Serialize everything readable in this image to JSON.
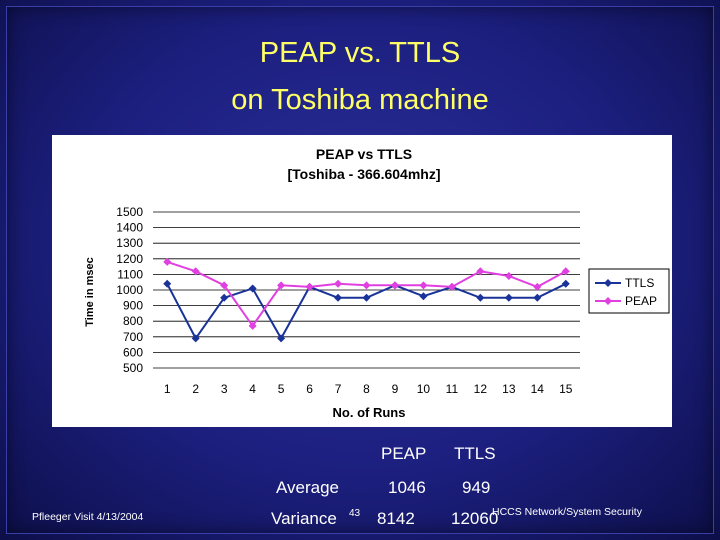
{
  "slide": {
    "title_line1": "PEAP vs. TTLS",
    "title_line2": "on Toshiba machine",
    "footer_left": "Pfleeger Visit 4/13/2004",
    "footer_right": "HCCS Network/System Security",
    "page_number": "43"
  },
  "stats": {
    "col_peap": "PEAP",
    "col_ttls": "TTLS",
    "average_label": "Average",
    "average_peap": "1046",
    "average_ttls": "949",
    "variance_label": "Variance",
    "variance_peap": "8142",
    "variance_ttls": "12060"
  },
  "chart_data": {
    "type": "line",
    "title_line1": "PEAP vs TTLS",
    "title_line2": "[Toshiba - 366.604mhz]",
    "xlabel": "No. of Runs",
    "ylabel": "Time in msec",
    "x": [
      "1",
      "2",
      "3",
      "4",
      "5",
      "6",
      "7",
      "8",
      "9",
      "10",
      "11",
      "12",
      "13",
      "14",
      "15"
    ],
    "ylim": [
      500,
      1500
    ],
    "yticks": [
      "1500",
      "1400",
      "1300",
      "1200",
      "1100",
      "1000",
      "900",
      "800",
      "700",
      "600",
      "500"
    ],
    "grid": true,
    "legend_position": "right",
    "series": [
      {
        "name": "TTLS",
        "color": "#1a3399",
        "marker": "diamond",
        "values": [
          1040,
          690,
          950,
          1010,
          690,
          1020,
          950,
          950,
          1030,
          960,
          1020,
          950,
          950,
          950,
          1040
        ]
      },
      {
        "name": "PEAP",
        "color": "#e040e0",
        "marker": "diamond",
        "values": [
          1180,
          1120,
          1030,
          770,
          1030,
          1020,
          1040,
          1030,
          1030,
          1030,
          1020,
          1120,
          1090,
          1020,
          1120
        ]
      }
    ]
  }
}
